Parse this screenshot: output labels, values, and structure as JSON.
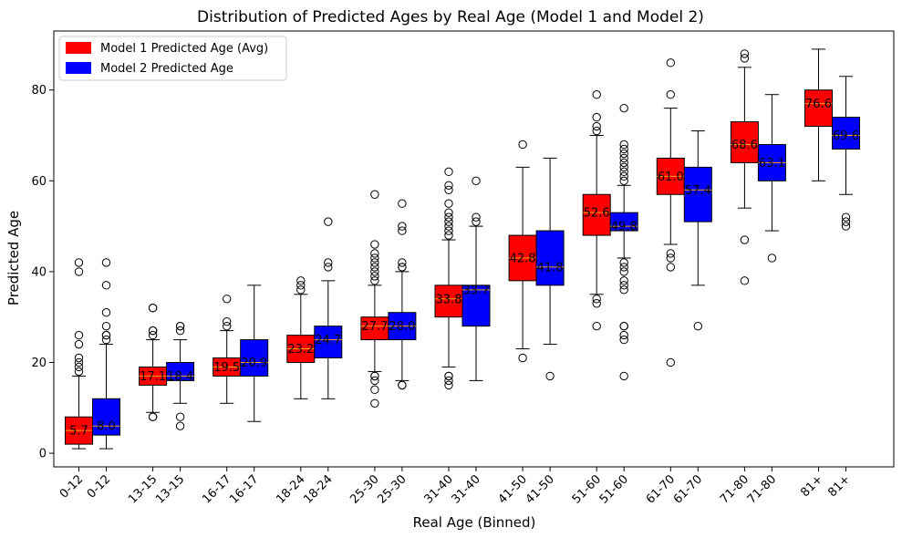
{
  "chart_data": {
    "type": "box",
    "title": "Distribution of Predicted Ages by Real Age (Model 1 and Model 2)",
    "xlabel": "Real Age (Binned)",
    "ylabel": "Predicted Age",
    "ylim": [
      -3,
      93
    ],
    "yticks": [
      0,
      20,
      40,
      60,
      80
    ],
    "grid": false,
    "legend_position": "top-left",
    "median_line_color": "#FFA500",
    "categories": [
      "0-12",
      "13-15",
      "16-17",
      "18-24",
      "25-30",
      "31-40",
      "41-50",
      "51-60",
      "61-70",
      "71-80",
      "81+"
    ],
    "series": [
      {
        "name": "Model 1 Predicted Age (Avg)",
        "color": "#FF0000",
        "boxes": [
          {
            "whisker_low": 1,
            "q1": 2,
            "median": 5,
            "q3": 8,
            "whisker_high": 17,
            "mean_label": "5.7",
            "outliers": [
              18,
              19,
              20,
              21,
              24,
              26,
              40,
              42
            ]
          },
          {
            "whisker_low": 9,
            "q1": 15,
            "median": 17,
            "q3": 19,
            "whisker_high": 25,
            "mean_label": "17.1",
            "outliers": [
              8,
              8,
              26,
              27,
              27,
              32,
              32
            ]
          },
          {
            "whisker_low": 11,
            "q1": 17,
            "median": 19,
            "q3": 21,
            "whisker_high": 27,
            "mean_label": "19.5",
            "outliers": [
              28,
              29,
              34
            ]
          },
          {
            "whisker_low": 12,
            "q1": 20,
            "median": 23,
            "q3": 26,
            "whisker_high": 35,
            "mean_label": "23.2",
            "outliers": [
              36,
              37,
              38
            ]
          },
          {
            "whisker_low": 18,
            "q1": 25,
            "median": 28,
            "q3": 30,
            "whisker_high": 37,
            "mean_label": "27.7",
            "outliers": [
              11,
              14,
              16,
              17,
              17,
              38,
              39,
              40,
              41,
              42,
              43,
              44,
              46,
              57
            ]
          },
          {
            "whisker_low": 19,
            "q1": 30,
            "median": 34,
            "q3": 37,
            "whisker_high": 47,
            "mean_label": "33.8",
            "outliers": [
              15,
              16,
              17,
              17,
              48,
              49,
              50,
              51,
              52,
              53,
              55,
              58,
              59,
              62
            ]
          },
          {
            "whisker_low": 23,
            "q1": 38,
            "median": 43,
            "q3": 48,
            "whisker_high": 63,
            "mean_label": "42.8",
            "outliers": [
              21,
              68
            ]
          },
          {
            "whisker_low": 35,
            "q1": 48,
            "median": 53,
            "q3": 57,
            "whisker_high": 70,
            "mean_label": "52.6",
            "outliers": [
              28,
              33,
              34,
              71,
              72,
              74,
              79
            ]
          },
          {
            "whisker_low": 46,
            "q1": 57,
            "median": 61,
            "q3": 65,
            "whisker_high": 76,
            "mean_label": "61.0",
            "outliers": [
              20,
              41,
              43,
              44,
              79,
              86
            ]
          },
          {
            "whisker_low": 54,
            "q1": 64,
            "median": 68,
            "q3": 73,
            "whisker_high": 85,
            "mean_label": "68.6",
            "outliers": [
              38,
              47,
              87,
              88
            ]
          },
          {
            "whisker_low": 60,
            "q1": 72,
            "median": 77,
            "q3": 80,
            "whisker_high": 89,
            "mean_label": "76.6",
            "outliers": []
          }
        ]
      },
      {
        "name": "Model 2 Predicted Age",
        "color": "#0000FF",
        "boxes": [
          {
            "whisker_low": 1,
            "q1": 4,
            "median": 6,
            "q3": 12,
            "whisker_high": 24,
            "mean_label": "8.0",
            "outliers": [
              25,
              26,
              26,
              28,
              31,
              37,
              42
            ]
          },
          {
            "whisker_low": 11,
            "q1": 16,
            "median": 17,
            "q3": 20,
            "whisker_high": 25,
            "mean_label": "18.4",
            "outliers": [
              6,
              8,
              27,
              28,
              28
            ]
          },
          {
            "whisker_low": 7,
            "q1": 17,
            "median": 20,
            "q3": 25,
            "whisker_high": 37,
            "mean_label": "20.9",
            "outliers": []
          },
          {
            "whisker_low": 12,
            "q1": 21,
            "median": 25,
            "q3": 28,
            "whisker_high": 38,
            "mean_label": "24.7",
            "outliers": [
              41,
              42,
              51
            ]
          },
          {
            "whisker_low": 16,
            "q1": 25,
            "median": 28,
            "q3": 31,
            "whisker_high": 40,
            "mean_label": "28.0",
            "outliers": [
              15,
              15,
              41,
              41,
              42,
              49,
              50,
              55
            ]
          },
          {
            "whisker_low": 16,
            "q1": 28,
            "median": 36,
            "q3": 37,
            "whisker_high": 50,
            "mean_label": "33.7",
            "outliers": [
              51,
              52,
              60
            ]
          },
          {
            "whisker_low": 24,
            "q1": 37,
            "median": 41,
            "q3": 49,
            "whisker_high": 65,
            "mean_label": "41.8",
            "outliers": [
              17
            ]
          },
          {
            "whisker_low": 43,
            "q1": 49,
            "median": 50,
            "q3": 53,
            "whisker_high": 59,
            "mean_label": "49.8",
            "outliers": [
              17,
              25,
              26,
              28,
              28,
              36,
              37,
              38,
              40,
              41,
              42,
              60,
              61,
              62,
              63,
              64,
              65,
              66,
              67,
              68,
              76
            ]
          },
          {
            "whisker_low": 37,
            "q1": 51,
            "median": 58,
            "q3": 63,
            "whisker_high": 71,
            "mean_label": "57.4",
            "outliers": [
              28
            ]
          },
          {
            "whisker_low": 49,
            "q1": 60,
            "median": 64,
            "q3": 68,
            "whisker_high": 79,
            "mean_label": "63.1",
            "outliers": [
              43
            ]
          },
          {
            "whisker_low": 57,
            "q1": 67,
            "median": 70,
            "q3": 74,
            "whisker_high": 83,
            "mean_label": "69.6",
            "outliers": [
              50,
              51,
              52
            ]
          }
        ]
      }
    ]
  }
}
